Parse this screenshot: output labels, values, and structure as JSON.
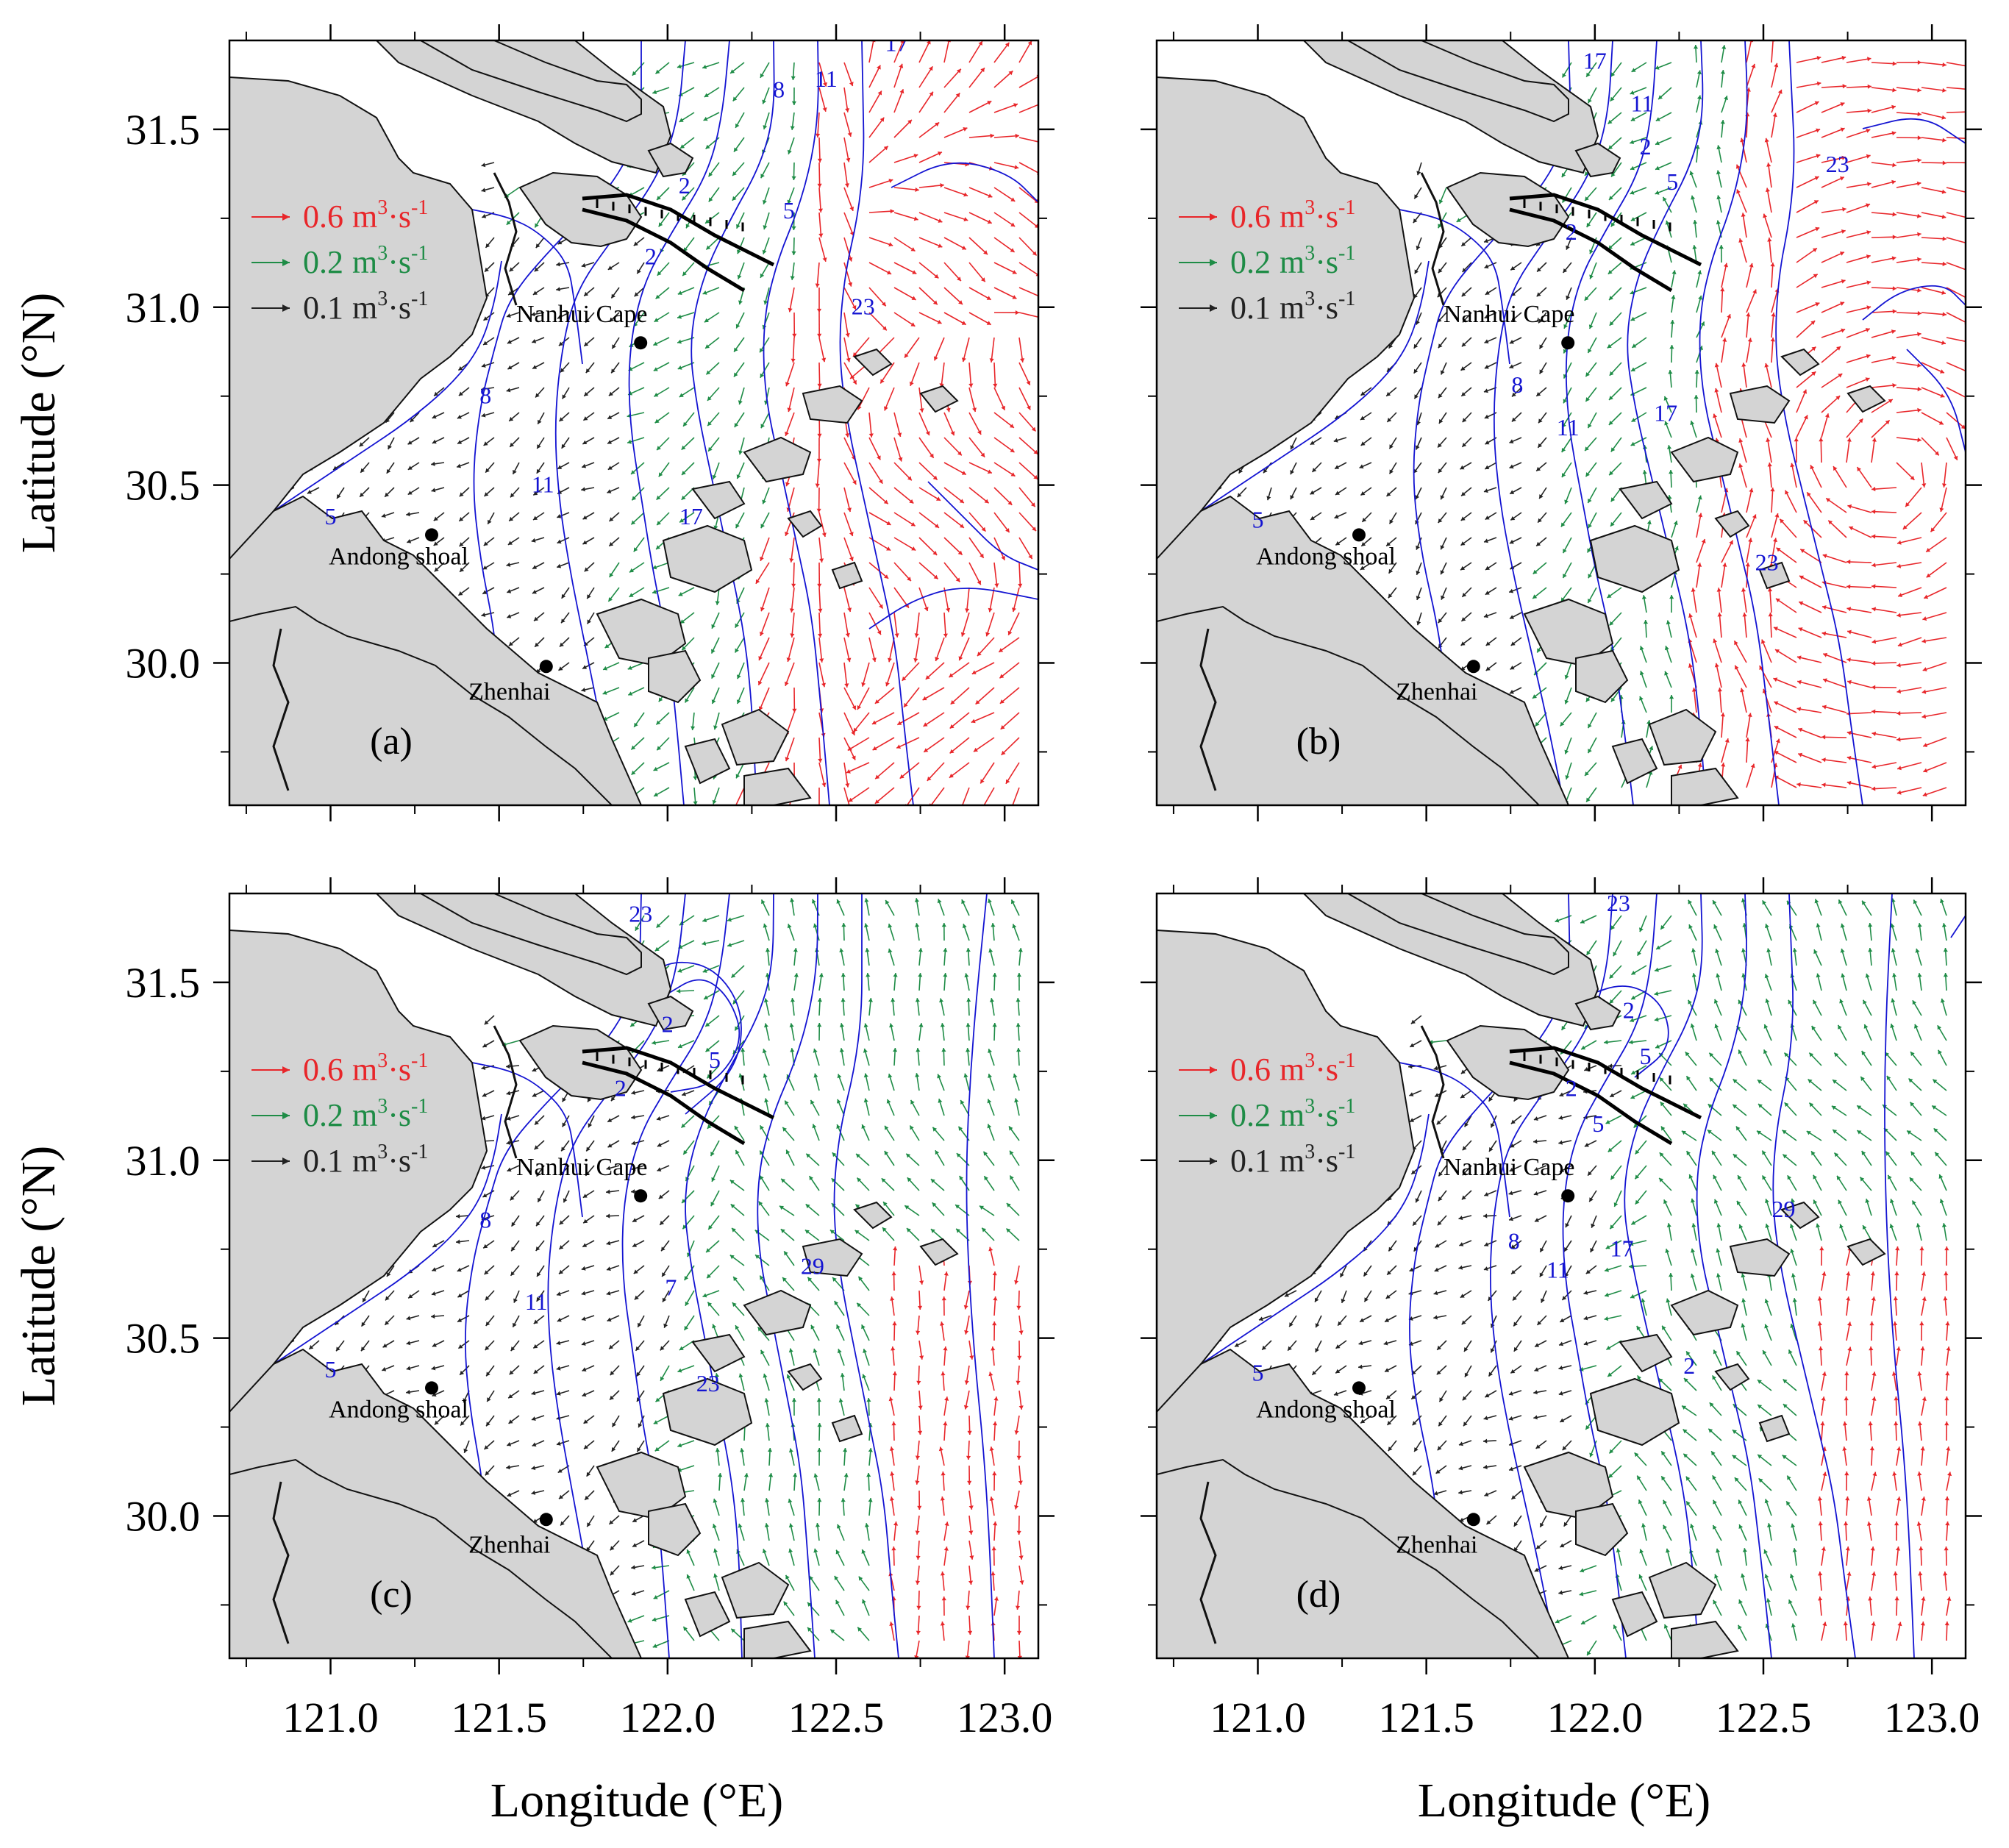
{
  "axes": {
    "x_title": "Longitude (°E)",
    "y_title": "Latitude (°N)",
    "x_ticks": [
      "121.0",
      "121.5",
      "122.0",
      "122.5",
      "123.0"
    ],
    "y_ticks": [
      "31.5",
      "31.0",
      "30.5",
      "30.0"
    ],
    "x_values": [
      121.0,
      121.5,
      122.0,
      122.5,
      123.0
    ],
    "y_values": [
      31.5,
      31.0,
      30.5,
      30.0
    ],
    "xlim": [
      120.7,
      123.1
    ],
    "ylim": [
      29.6,
      31.75
    ]
  },
  "legend": [
    {
      "value": "0.6",
      "unit": "m",
      "sup1": "3",
      "mid": "·s",
      "sup2": "-1",
      "color": "#e8262a"
    },
    {
      "value": "0.2",
      "unit": "m",
      "sup1": "3",
      "mid": "·s",
      "sup2": "-1",
      "color": "#1e8c46"
    },
    {
      "value": "0.1",
      "unit": "m",
      "sup1": "3",
      "mid": "·s",
      "sup2": "-1",
      "color": "#222222"
    }
  ],
  "places": [
    {
      "name": "Nanhui Cape",
      "lon": 121.92,
      "lat": 30.9
    },
    {
      "name": "Andong shoal",
      "lon": 121.3,
      "lat": 30.36
    },
    {
      "name": "Zhenhai",
      "lon": 121.64,
      "lat": 29.99
    }
  ],
  "panels": [
    {
      "label": "(a)",
      "contour_labels": [
        {
          "text": "17",
          "lon": 122.68,
          "lat": 31.72
        },
        {
          "text": "11",
          "lon": 122.47,
          "lat": 31.62
        },
        {
          "text": "8",
          "lon": 122.33,
          "lat": 31.59
        },
        {
          "text": "2",
          "lon": 122.05,
          "lat": 31.32
        },
        {
          "text": "5",
          "lon": 122.36,
          "lat": 31.25
        },
        {
          "text": "2",
          "lon": 121.95,
          "lat": 31.12
        },
        {
          "text": "23",
          "lon": 122.58,
          "lat": 30.98
        },
        {
          "text": "8",
          "lon": 121.46,
          "lat": 30.73
        },
        {
          "text": "11",
          "lon": 121.63,
          "lat": 30.48
        },
        {
          "text": "17",
          "lon": 122.07,
          "lat": 30.39
        },
        {
          "text": "5",
          "lon": 121.0,
          "lat": 30.39
        }
      ]
    },
    {
      "label": "(b)",
      "contour_labels": [
        {
          "text": "17",
          "lon": 122.0,
          "lat": 31.67
        },
        {
          "text": "11",
          "lon": 122.14,
          "lat": 31.55
        },
        {
          "text": "2",
          "lon": 122.15,
          "lat": 31.43
        },
        {
          "text": "23",
          "lon": 122.72,
          "lat": 31.38
        },
        {
          "text": "5",
          "lon": 122.23,
          "lat": 31.33
        },
        {
          "text": "2",
          "lon": 121.93,
          "lat": 31.19
        },
        {
          "text": "8",
          "lon": 121.77,
          "lat": 30.76
        },
        {
          "text": "17",
          "lon": 122.21,
          "lat": 30.68
        },
        {
          "text": "11",
          "lon": 121.92,
          "lat": 30.64
        },
        {
          "text": "23",
          "lon": 122.51,
          "lat": 30.26
        },
        {
          "text": "5",
          "lon": 121.0,
          "lat": 30.38
        }
      ]
    },
    {
      "label": "(c)",
      "contour_labels": [
        {
          "text": "23",
          "lon": 121.92,
          "lat": 31.67
        },
        {
          "text": "2",
          "lon": 122.0,
          "lat": 31.36
        },
        {
          "text": "5",
          "lon": 122.14,
          "lat": 31.26
        },
        {
          "text": "2",
          "lon": 121.86,
          "lat": 31.18
        },
        {
          "text": "8",
          "lon": 121.46,
          "lat": 30.81
        },
        {
          "text": "29",
          "lon": 122.43,
          "lat": 30.68
        },
        {
          "text": "11",
          "lon": 121.61,
          "lat": 30.58
        },
        {
          "text": "7",
          "lon": 122.01,
          "lat": 30.62
        },
        {
          "text": "23",
          "lon": 122.12,
          "lat": 30.35
        },
        {
          "text": "5",
          "lon": 121.0,
          "lat": 30.39
        }
      ]
    },
    {
      "label": "(d)",
      "contour_labels": [
        {
          "text": "23",
          "lon": 122.07,
          "lat": 31.7
        },
        {
          "text": "2",
          "lon": 122.1,
          "lat": 31.4
        },
        {
          "text": "5",
          "lon": 122.15,
          "lat": 31.27
        },
        {
          "text": "2",
          "lon": 121.93,
          "lat": 31.18
        },
        {
          "text": "5",
          "lon": 122.01,
          "lat": 31.08
        },
        {
          "text": "29",
          "lon": 122.56,
          "lat": 30.84
        },
        {
          "text": "8",
          "lon": 121.76,
          "lat": 30.75
        },
        {
          "text": "17",
          "lon": 122.08,
          "lat": 30.73
        },
        {
          "text": "11",
          "lon": 121.89,
          "lat": 30.67
        },
        {
          "text": "2",
          "lon": 122.28,
          "lat": 30.4
        },
        {
          "text": "5",
          "lon": 121.0,
          "lat": 30.38
        }
      ]
    }
  ]
}
